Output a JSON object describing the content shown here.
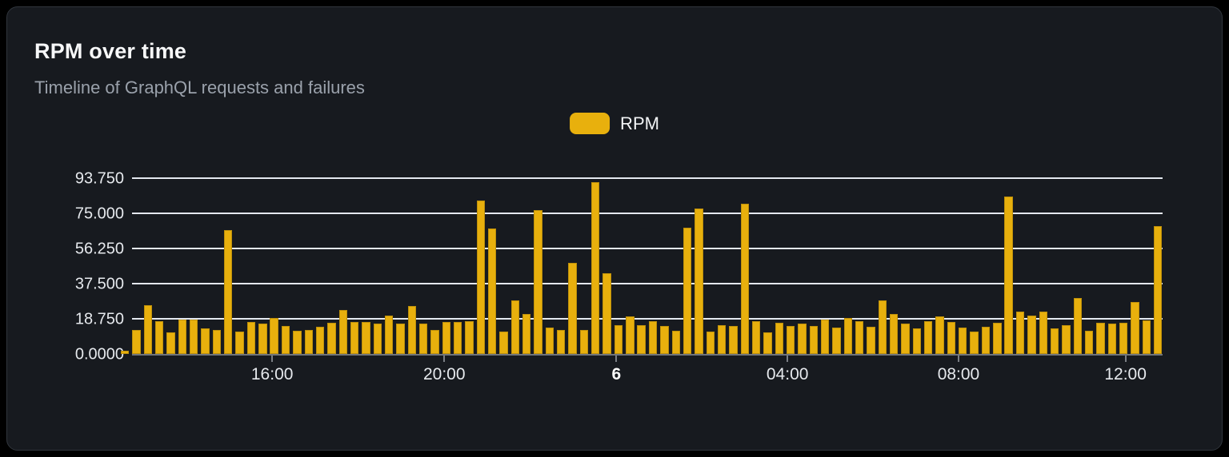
{
  "card": {
    "title": "RPM over time",
    "subtitle": "Timeline of GraphQL requests and failures"
  },
  "legend": {
    "label": "RPM",
    "swatch_color": "#e8b00d"
  },
  "colors": {
    "card_background": "#171a1f",
    "card_border": "#30353c",
    "gridline": "#e4e8ef",
    "axis_line": "#71757b",
    "title_text": "#f7f8f9",
    "subtitle_text": "#9aa1ab",
    "tick_text": "#e6e9ed"
  },
  "chart_data": {
    "type": "bar",
    "title": "RPM over time",
    "subtitle": "Timeline of GraphQL requests and failures",
    "series_name": "RPM",
    "bar_color": "#e8b00d",
    "xlabel": "",
    "ylabel": "",
    "ylim": [
      0,
      93.75
    ],
    "grid": true,
    "legend_position": "top-center",
    "y_ticks": [
      "0.0000",
      "18.750",
      "37.500",
      "56.250",
      "75.000",
      "93.750"
    ],
    "x_ticks": [
      {
        "label": "16:00",
        "pos": 0.136,
        "bold": false
      },
      {
        "label": "20:00",
        "pos": 0.303,
        "bold": false
      },
      {
        "label": "6",
        "pos": 0.47,
        "bold": true
      },
      {
        "label": "04:00",
        "pos": 0.636,
        "bold": false
      },
      {
        "label": "08:00",
        "pos": 0.802,
        "bold": false
      },
      {
        "label": "12:00",
        "pos": 0.964,
        "bold": false
      }
    ],
    "values": [
      1.5,
      13,
      26,
      17.5,
      11.5,
      18.5,
      18.5,
      13.5,
      13,
      66,
      12,
      17,
      16,
      19,
      15,
      12.5,
      13,
      14.5,
      16.5,
      23.5,
      17,
      17,
      16,
      20.5,
      16,
      25.5,
      16,
      13,
      17,
      17,
      17.5,
      82,
      67,
      12,
      28.5,
      21.5,
      76.5,
      14,
      13,
      48.5,
      13,
      91.5,
      43,
      15.5,
      20,
      15.5,
      17.5,
      15,
      12.5,
      67.5,
      77.5,
      12,
      15.5,
      15,
      80,
      17.5,
      11.5,
      16.5,
      15,
      16,
      15,
      18.5,
      14,
      19,
      17.5,
      14.5,
      28.5,
      21.5,
      16,
      13.5,
      17.5,
      20,
      17,
      14,
      12,
      14.5,
      16.5,
      84,
      22.5,
      20.5,
      22.5,
      13.5,
      15.5,
      30,
      12.5,
      16.5,
      16,
      16.5,
      27.5,
      18,
      68
    ]
  }
}
